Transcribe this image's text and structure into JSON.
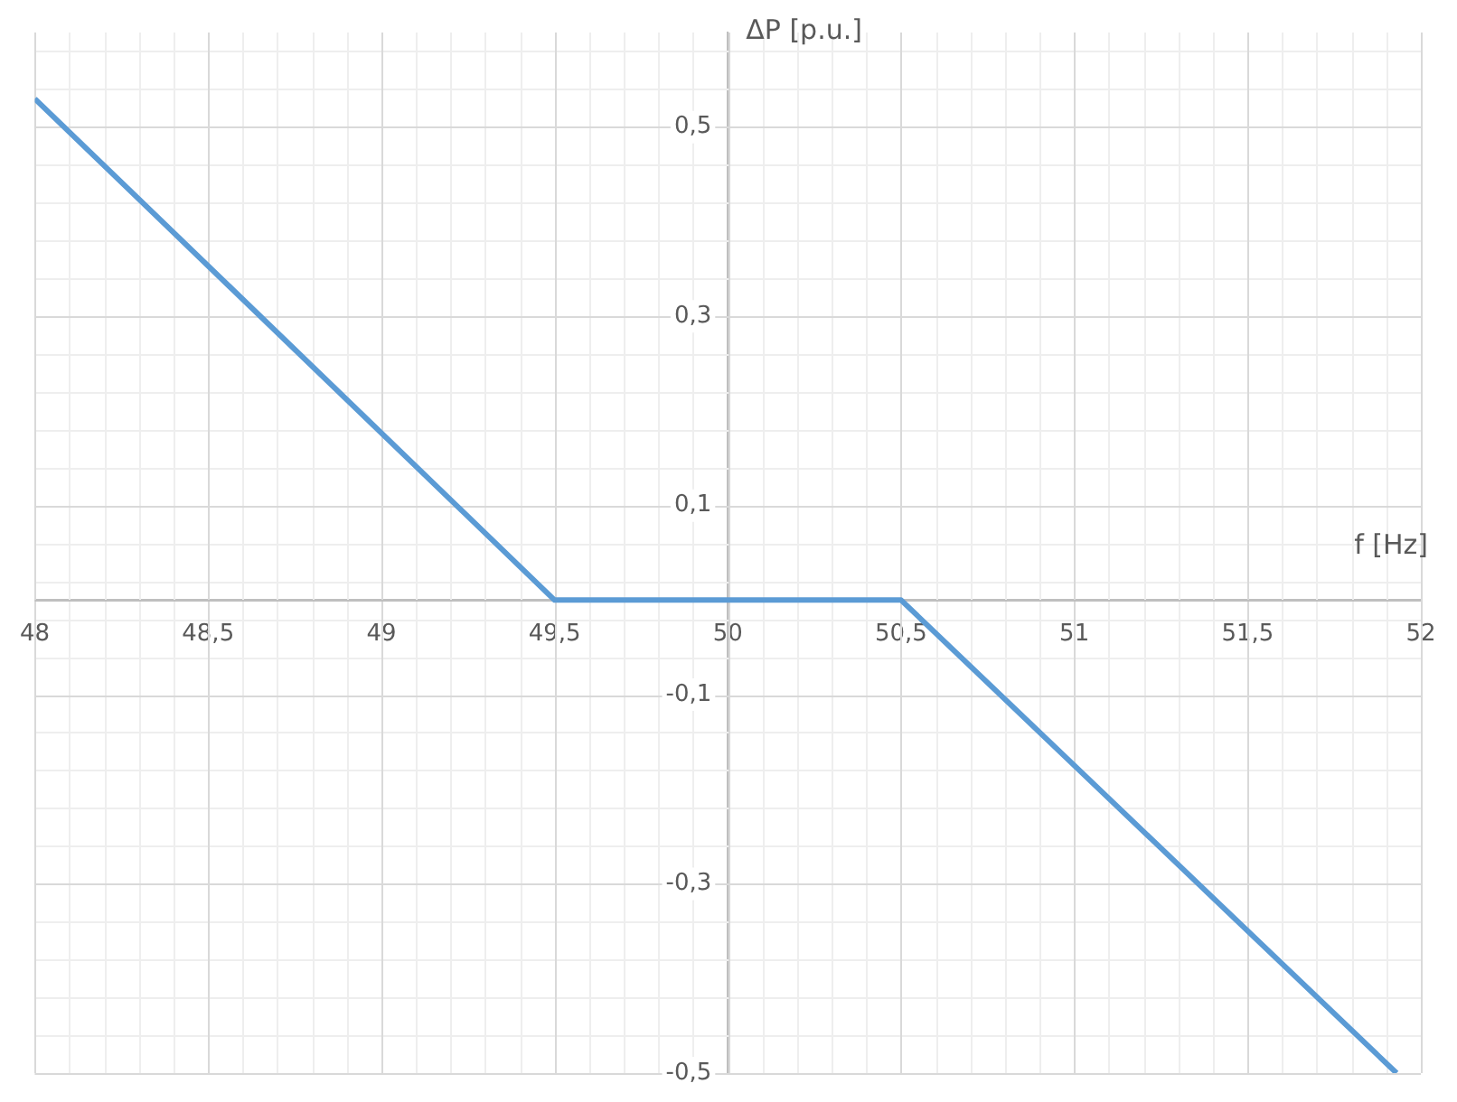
{
  "chart_data": {
    "type": "line",
    "xlabel": "f [Hz]",
    "ylabel": "ΔP [p.u.]",
    "x": [
      48,
      49.5,
      50.5,
      51.93
    ],
    "series": [
      {
        "color": "#5b9bd5",
        "values": [
          0.53,
          0,
          0,
          -0.5
        ]
      }
    ],
    "xlim": [
      48,
      52
    ],
    "ylim": [
      -0.5,
      0.6
    ],
    "xticks": [
      48,
      {
        "value": 48.5,
        "label": "48,5"
      },
      49,
      {
        "value": 49.5,
        "label": "49,5"
      },
      50,
      {
        "value": 50.5,
        "label": "50,5"
      },
      51,
      {
        "value": 51.5,
        "label": "51,5"
      },
      52
    ],
    "yticks": [
      {
        "value": -0.5,
        "label": "-0,5"
      },
      {
        "value": -0.3,
        "label": "-0,3"
      },
      {
        "value": -0.1,
        "label": "-0,1"
      },
      {
        "value": 0.1,
        "label": "0,1"
      },
      {
        "value": 0.3,
        "label": "0,3"
      },
      {
        "value": 0.5,
        "label": "0,5"
      }
    ],
    "grid": true,
    "marker": "none",
    "line_style": "solid"
  }
}
